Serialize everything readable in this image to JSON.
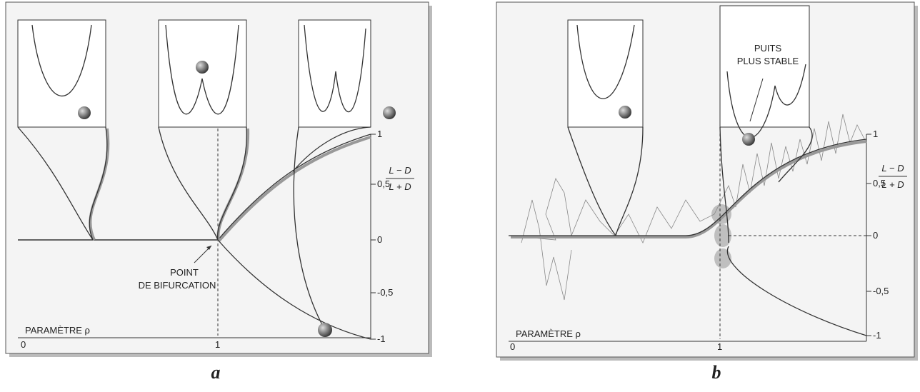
{
  "panel_a": {
    "label": "a",
    "y_axis_label_numerator": "L − D",
    "y_axis_label_denominator": "L + D",
    "y_ticks": [
      "1",
      "0,5",
      "0",
      "-0,5",
      "-1"
    ],
    "x_axis_label": "PARAMÈTRE ρ",
    "x_ticks": [
      "0",
      "1"
    ],
    "annotation": [
      "POINT",
      "DE BIFURCATION"
    ]
  },
  "panel_b": {
    "label": "b",
    "y_axis_label_numerator": "L − D",
    "y_axis_label_denominator": "L + D",
    "y_ticks": [
      "1",
      "0,5",
      "0",
      "-0,5",
      "-1"
    ],
    "x_axis_label": "PARAMÈTRE ρ",
    "x_ticks": [
      "0",
      "1"
    ],
    "annotation": [
      "PUITS",
      "PLUS STABLE"
    ]
  }
}
